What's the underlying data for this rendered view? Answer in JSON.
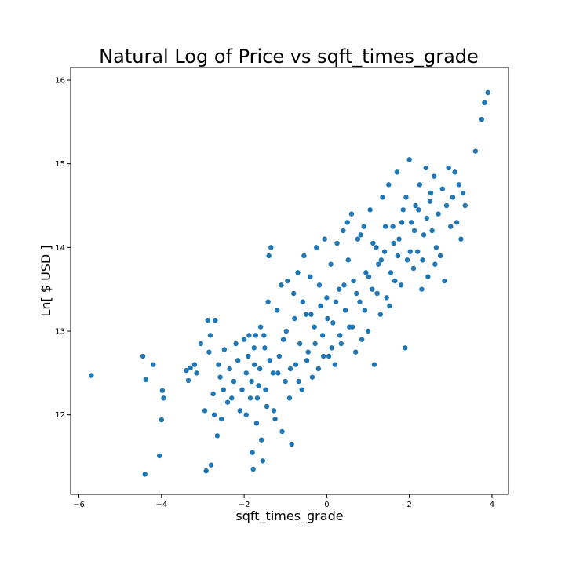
{
  "chart_data": {
    "type": "scatter",
    "title": "Natural Log of Price vs sqft_times_grade",
    "xlabel": "sqft_times_grade",
    "ylabel": "Ln[ $ USD ]",
    "xlim": [
      -6.2,
      4.4
    ],
    "ylim": [
      11.05,
      16.15
    ],
    "xticks": [
      -6,
      -4,
      -2,
      0,
      2,
      4
    ],
    "yticks": [
      12,
      13,
      14,
      15,
      16
    ],
    "xtick_labels": [
      "−6",
      "−4",
      "−2",
      "0",
      "2",
      "4"
    ],
    "ytick_labels": [
      "12",
      "13",
      "14",
      "15",
      "16"
    ],
    "grid": false,
    "legend": "none",
    "marker_color": "#1f77b4",
    "series": [
      {
        "points": [
          [
            -5.7,
            12.47
          ],
          [
            -4.45,
            12.7
          ],
          [
            -4.38,
            12.42
          ],
          [
            -4.4,
            11.29
          ],
          [
            -4.2,
            12.6
          ],
          [
            -4.05,
            11.51
          ],
          [
            -4.0,
            11.94
          ],
          [
            -3.98,
            12.29
          ],
          [
            -3.95,
            12.2
          ],
          [
            -3.4,
            12.53
          ],
          [
            -3.35,
            12.41
          ],
          [
            -3.3,
            12.56
          ],
          [
            -3.2,
            12.6
          ],
          [
            -3.15,
            12.5
          ],
          [
            -3.05,
            12.85
          ],
          [
            -2.95,
            12.05
          ],
          [
            -2.92,
            11.33
          ],
          [
            -2.88,
            13.13
          ],
          [
            -2.85,
            12.75
          ],
          [
            -2.82,
            12.95
          ],
          [
            -2.8,
            11.4
          ],
          [
            -2.75,
            12.25
          ],
          [
            -2.72,
            12.0
          ],
          [
            -2.7,
            13.13
          ],
          [
            -2.65,
            11.75
          ],
          [
            -2.62,
            12.6
          ],
          [
            -2.58,
            12.45
          ],
          [
            -2.55,
            11.95
          ],
          [
            -2.5,
            12.3
          ],
          [
            -2.48,
            12.78
          ],
          [
            -2.4,
            12.15
          ],
          [
            -2.35,
            12.55
          ],
          [
            -2.3,
            12.2
          ],
          [
            -2.25,
            12.4
          ],
          [
            -2.2,
            12.85
          ],
          [
            -2.15,
            12.65
          ],
          [
            -2.1,
            12.05
          ],
          [
            -2.05,
            12.3
          ],
          [
            -2.0,
            12.9
          ],
          [
            -1.95,
            12.5
          ],
          [
            -1.9,
            12.7
          ],
          [
            -1.85,
            12.2
          ],
          [
            -1.8,
            11.55
          ],
          [
            -1.78,
            11.35
          ],
          [
            -1.75,
            12.6
          ],
          [
            -1.72,
            12.95
          ],
          [
            -1.7,
            11.9
          ],
          [
            -1.65,
            12.35
          ],
          [
            -1.6,
            13.05
          ],
          [
            -1.55,
            11.45
          ],
          [
            -1.5,
            12.8
          ],
          [
            -1.45,
            12.1
          ],
          [
            -1.42,
            13.35
          ],
          [
            -1.4,
            13.9
          ],
          [
            -1.35,
            14.0
          ],
          [
            -1.3,
            12.5
          ],
          [
            -1.25,
            11.95
          ],
          [
            -1.2,
            13.25
          ],
          [
            -1.15,
            12.7
          ],
          [
            -1.1,
            13.55
          ],
          [
            -1.05,
            12.9
          ],
          [
            -1.0,
            12.4
          ],
          [
            -0.95,
            13.6
          ],
          [
            -0.9,
            12.2
          ],
          [
            -0.85,
            11.65
          ],
          [
            -0.8,
            13.45
          ],
          [
            -0.75,
            12.6
          ],
          [
            -0.7,
            13.7
          ],
          [
            -0.65,
            12.85
          ],
          [
            -0.6,
            12.3
          ],
          [
            -0.55,
            13.9
          ],
          [
            -0.5,
            13.2
          ],
          [
            -0.45,
            12.75
          ],
          [
            -0.4,
            13.65
          ],
          [
            -0.35,
            12.45
          ],
          [
            -0.3,
            13.05
          ],
          [
            -0.25,
            14.0
          ],
          [
            -0.2,
            12.55
          ],
          [
            -0.15,
            13.3
          ],
          [
            -0.1,
            12.95
          ],
          [
            -0.05,
            14.1
          ],
          [
            0.0,
            13.4
          ],
          [
            0.05,
            12.7
          ],
          [
            0.1,
            13.8
          ],
          [
            0.15,
            13.1
          ],
          [
            0.2,
            12.6
          ],
          [
            0.25,
            14.05
          ],
          [
            0.3,
            13.5
          ],
          [
            0.35,
            12.85
          ],
          [
            0.4,
            14.2
          ],
          [
            0.45,
            13.25
          ],
          [
            0.5,
            14.3
          ],
          [
            0.55,
            13.05
          ],
          [
            0.6,
            14.4
          ],
          [
            0.65,
            13.6
          ],
          [
            0.7,
            12.75
          ],
          [
            0.75,
            14.1
          ],
          [
            0.8,
            13.35
          ],
          [
            0.85,
            12.9
          ],
          [
            0.9,
            14.25
          ],
          [
            0.95,
            13.7
          ],
          [
            1.0,
            13.0
          ],
          [
            1.05,
            14.45
          ],
          [
            1.1,
            13.5
          ],
          [
            1.15,
            12.6
          ],
          [
            1.2,
            14.0
          ],
          [
            1.25,
            13.8
          ],
          [
            1.3,
            13.2
          ],
          [
            1.35,
            14.6
          ],
          [
            1.4,
            13.95
          ],
          [
            1.45,
            13.4
          ],
          [
            1.5,
            14.75
          ],
          [
            1.55,
            13.7
          ],
          [
            1.6,
            14.25
          ],
          [
            1.65,
            13.6
          ],
          [
            1.7,
            14.9
          ],
          [
            1.75,
            14.1
          ],
          [
            1.8,
            13.55
          ],
          [
            1.85,
            14.45
          ],
          [
            1.9,
            12.8
          ],
          [
            1.95,
            13.85
          ],
          [
            2.0,
            15.05
          ],
          [
            2.05,
            14.3
          ],
          [
            2.1,
            13.75
          ],
          [
            2.15,
            14.5
          ],
          [
            2.2,
            13.95
          ],
          [
            2.25,
            14.75
          ],
          [
            2.3,
            13.5
          ],
          [
            2.35,
            14.15
          ],
          [
            2.4,
            14.95
          ],
          [
            2.45,
            13.65
          ],
          [
            2.5,
            14.55
          ],
          [
            2.55,
            14.2
          ],
          [
            2.6,
            14.85
          ],
          [
            2.65,
            14.0
          ],
          [
            2.7,
            14.4
          ],
          [
            2.75,
            13.9
          ],
          [
            2.8,
            14.7
          ],
          [
            2.85,
            13.6
          ],
          [
            2.9,
            14.5
          ],
          [
            2.95,
            14.95
          ],
          [
            3.0,
            14.25
          ],
          [
            3.05,
            14.6
          ],
          [
            3.1,
            14.9
          ],
          [
            3.15,
            14.3
          ],
          [
            3.2,
            14.75
          ],
          [
            3.25,
            14.1
          ],
          [
            3.3,
            14.65
          ],
          [
            3.35,
            14.5
          ],
          [
            3.6,
            15.15
          ],
          [
            3.75,
            15.53
          ],
          [
            3.82,
            15.73
          ],
          [
            3.9,
            15.85
          ],
          [
            -1.95,
            12.0
          ],
          [
            -1.88,
            12.95
          ],
          [
            -1.82,
            12.4
          ],
          [
            -1.76,
            12.8
          ],
          [
            -1.68,
            12.2
          ],
          [
            -1.62,
            12.55
          ],
          [
            -1.58,
            11.7
          ],
          [
            -1.52,
            12.95
          ],
          [
            -1.48,
            12.3
          ],
          [
            -1.38,
            12.65
          ],
          [
            -1.28,
            12.05
          ],
          [
            -1.18,
            12.5
          ],
          [
            -1.08,
            11.8
          ],
          [
            -0.98,
            13.0
          ],
          [
            -0.88,
            12.55
          ],
          [
            -0.78,
            13.15
          ],
          [
            -0.68,
            12.4
          ],
          [
            -0.58,
            13.35
          ],
          [
            -0.48,
            12.65
          ],
          [
            -0.38,
            13.2
          ],
          [
            -0.28,
            12.85
          ],
          [
            -0.18,
            13.55
          ],
          [
            -0.08,
            12.7
          ],
          [
            0.02,
            13.15
          ],
          [
            0.12,
            12.8
          ],
          [
            0.22,
            13.35
          ],
          [
            0.32,
            12.95
          ],
          [
            0.42,
            13.55
          ],
          [
            0.52,
            13.85
          ],
          [
            0.62,
            13.05
          ],
          [
            0.72,
            13.45
          ],
          [
            0.82,
            14.15
          ],
          [
            0.92,
            13.25
          ],
          [
            1.02,
            13.65
          ],
          [
            1.12,
            14.05
          ],
          [
            1.22,
            13.45
          ],
          [
            1.32,
            13.85
          ],
          [
            1.42,
            14.25
          ],
          [
            1.52,
            13.3
          ],
          [
            1.62,
            14.05
          ],
          [
            1.72,
            13.9
          ],
          [
            1.82,
            14.3
          ],
          [
            1.92,
            14.6
          ],
          [
            2.02,
            13.95
          ],
          [
            2.12,
            14.2
          ],
          [
            2.22,
            14.45
          ],
          [
            2.32,
            13.85
          ],
          [
            2.42,
            14.35
          ],
          [
            2.52,
            14.65
          ],
          [
            2.62,
            13.8
          ]
        ]
      }
    ]
  }
}
